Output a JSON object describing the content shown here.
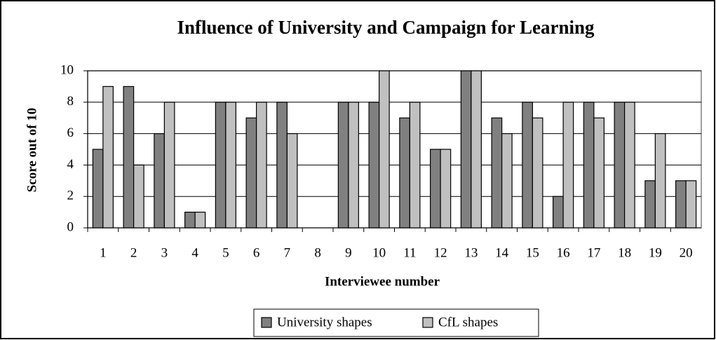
{
  "chart_data": {
    "type": "bar",
    "title": "Influence of University and Campaign for Learning",
    "x_label": "Interviewee number",
    "y_label": "Score out of 10",
    "categories": [
      "1",
      "2",
      "3",
      "4",
      "5",
      "6",
      "7",
      "8",
      "9",
      "10",
      "11",
      "12",
      "13",
      "14",
      "15",
      "16",
      "17",
      "18",
      "19",
      "20"
    ],
    "series": [
      {
        "name": "University shapes",
        "color": "#808080",
        "values": [
          5,
          9,
          6,
          1,
          8,
          7,
          8,
          null,
          8,
          8,
          7,
          5,
          10,
          7,
          8,
          2,
          8,
          8,
          3,
          3
        ]
      },
      {
        "name": "CfL shapes",
        "color": "#c0c0c0",
        "values": [
          9,
          4,
          8,
          1,
          8,
          8,
          6,
          null,
          8,
          10,
          8,
          5,
          10,
          6,
          7,
          8,
          7,
          8,
          6,
          3
        ]
      }
    ],
    "ylim": [
      0,
      10
    ],
    "yticks": [
      0,
      2,
      4,
      6,
      8,
      10
    ],
    "grid": true,
    "legend": "bottom"
  }
}
